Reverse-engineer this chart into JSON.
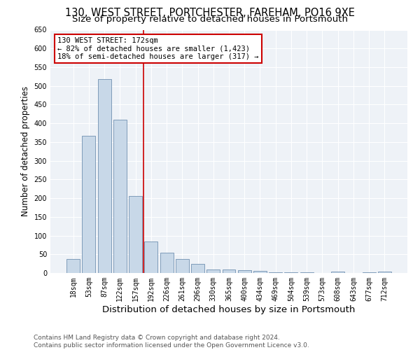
{
  "title1": "130, WEST STREET, PORTCHESTER, FAREHAM, PO16 9XE",
  "title2": "Size of property relative to detached houses in Portsmouth",
  "xlabel": "Distribution of detached houses by size in Portsmouth",
  "ylabel": "Number of detached properties",
  "categories": [
    "18sqm",
    "53sqm",
    "87sqm",
    "122sqm",
    "157sqm",
    "192sqm",
    "226sqm",
    "261sqm",
    "296sqm",
    "330sqm",
    "365sqm",
    "400sqm",
    "434sqm",
    "469sqm",
    "504sqm",
    "539sqm",
    "573sqm",
    "608sqm",
    "643sqm",
    "677sqm",
    "712sqm"
  ],
  "values": [
    38,
    367,
    519,
    410,
    205,
    85,
    55,
    37,
    25,
    10,
    10,
    7,
    5,
    2,
    2,
    1,
    0,
    3,
    0,
    1,
    3
  ],
  "bar_color": "#c8d8e8",
  "bar_edge_color": "#7090b0",
  "vline_x": 4.5,
  "vline_color": "#cc0000",
  "annotation_title": "130 WEST STREET: 172sqm",
  "annotation_line1": "← 82% of detached houses are smaller (1,423)",
  "annotation_line2": "18% of semi-detached houses are larger (317) →",
  "annotation_box_color": "#cc0000",
  "ylim": [
    0,
    650
  ],
  "yticks": [
    0,
    50,
    100,
    150,
    200,
    250,
    300,
    350,
    400,
    450,
    500,
    550,
    600,
    650
  ],
  "footer1": "Contains HM Land Registry data © Crown copyright and database right 2024.",
  "footer2": "Contains public sector information licensed under the Open Government Licence v3.0.",
  "bg_color": "#eef2f7",
  "title1_fontsize": 10.5,
  "title2_fontsize": 9.5,
  "xlabel_fontsize": 9.5,
  "ylabel_fontsize": 8.5,
  "tick_fontsize": 7,
  "annotation_fontsize": 7.5,
  "footer_fontsize": 6.5
}
